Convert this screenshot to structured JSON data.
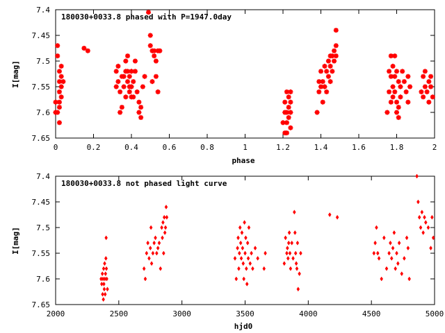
{
  "chart_data": [
    {
      "type": "scatter",
      "title": "180030+0033.8 phased with P=1947.0day",
      "xlabel": "phase",
      "ylabel": "I[mag]",
      "xlim": [
        0,
        2
      ],
      "ylim": [
        7.4,
        7.65
      ],
      "y_inverted": true,
      "xticks": [
        "0",
        "0.2",
        "0.4",
        "0.6",
        "0.8",
        "1",
        "1.2",
        "1.4",
        "1.6",
        "1.8",
        "2"
      ],
      "yticks": [
        "7.4",
        "7.45",
        "7.5",
        "7.55",
        "7.6",
        "7.65"
      ],
      "marker_color": "#ff0000",
      "marker": "star",
      "series": [
        {
          "x": [
            0.0,
            0.0,
            0.01,
            0.01,
            0.01,
            0.02,
            0.02,
            0.02,
            0.02,
            0.02,
            0.02,
            0.03,
            0.03,
            0.03,
            0.03,
            0.04,
            0.15,
            0.17,
            0.32,
            0.32,
            0.33,
            0.33,
            0.34,
            0.34,
            0.35,
            0.35,
            0.36,
            0.36,
            0.37,
            0.37,
            0.37,
            0.38,
            0.38,
            0.38,
            0.39,
            0.39,
            0.39,
            0.4,
            0.4,
            0.4,
            0.41,
            0.41,
            0.42,
            0.42,
            0.43,
            0.44,
            0.44,
            0.45,
            0.45,
            0.46,
            0.47,
            0.49,
            0.5,
            0.5,
            0.51,
            0.51,
            0.52,
            0.52,
            0.53,
            0.53,
            0.54,
            0.54,
            0.55,
            1.2,
            1.21,
            1.21,
            1.21,
            1.22,
            1.22,
            1.22,
            1.22,
            1.23,
            1.23,
            1.23,
            1.24,
            1.24,
            1.24,
            1.24,
            1.38,
            1.39,
            1.39,
            1.4,
            1.4,
            1.41,
            1.41,
            1.42,
            1.42,
            1.43,
            1.43,
            1.44,
            1.44,
            1.45,
            1.45,
            1.45,
            1.46,
            1.46,
            1.47,
            1.47,
            1.48,
            1.48,
            1.48,
            1.75,
            1.76,
            1.76,
            1.77,
            1.77,
            1.77,
            1.78,
            1.78,
            1.78,
            1.79,
            1.79,
            1.79,
            1.8,
            1.8,
            1.8,
            1.81,
            1.81,
            1.81,
            1.82,
            1.82,
            1.83,
            1.84,
            1.85,
            1.86,
            1.86,
            1.87,
            1.93,
            1.94,
            1.94,
            1.95,
            1.95,
            1.96,
            1.97,
            1.97,
            1.98,
            1.98,
            1.99
          ],
          "y": [
            7.58,
            7.6,
            7.47,
            7.49,
            7.6,
            7.52,
            7.54,
            7.56,
            7.58,
            7.59,
            7.62,
            7.55,
            7.53,
            7.57,
            7.51,
            7.54,
            7.475,
            7.48,
            7.52,
            7.55,
            7.54,
            7.51,
            7.6,
            7.56,
            7.59,
            7.53,
            7.55,
            7.53,
            7.5,
            7.52,
            7.57,
            7.54,
            7.49,
            7.52,
            7.55,
            7.56,
            7.53,
            7.52,
            7.57,
            7.55,
            7.54,
            7.57,
            7.52,
            7.5,
            7.56,
            7.58,
            7.6,
            7.59,
            7.61,
            7.55,
            7.53,
            7.405,
            7.45,
            7.47,
            7.48,
            7.54,
            7.48,
            7.49,
            7.5,
            7.53,
            7.48,
            7.56,
            7.48,
            7.62,
            7.6,
            7.58,
            7.64,
            7.56,
            7.6,
            7.62,
            7.64,
            7.57,
            7.59,
            7.61,
            7.63,
            7.6,
            7.56,
            7.58,
            7.6,
            7.54,
            7.56,
            7.55,
            7.52,
            7.54,
            7.58,
            7.51,
            7.55,
            7.52,
            7.56,
            7.5,
            7.53,
            7.49,
            7.51,
            7.54,
            7.49,
            7.52,
            7.48,
            7.5,
            7.44,
            7.47,
            7.49,
            7.6,
            7.52,
            7.56,
            7.49,
            7.53,
            7.58,
            7.51,
            7.55,
            7.57,
            7.49,
            7.53,
            7.56,
            7.58,
            7.52,
            7.6,
            7.54,
            7.59,
            7.61,
            7.55,
            7.57,
            7.52,
            7.54,
            7.56,
            7.58,
            7.53,
            7.55,
            7.56,
            7.53,
            7.57,
            7.52,
            7.55,
            7.56,
            7.54,
            7.58,
            7.55,
            7.53,
            7.57
          ]
        }
      ]
    },
    {
      "type": "scatter",
      "title": "180030+0033.8 not phased light curve",
      "xlabel": "hjd0",
      "ylabel": "I[mag]",
      "xlim": [
        2000,
        5000
      ],
      "ylim": [
        7.4,
        7.65
      ],
      "y_inverted": true,
      "xticks": [
        "2000",
        "2500",
        "3000",
        "3500",
        "4000",
        "4500",
        "5000"
      ],
      "yticks": [
        "7.4",
        "7.45",
        "7.5",
        "7.55",
        "7.6",
        "7.65"
      ],
      "marker_color": "#ff0000",
      "marker": "diamond",
      "series": [
        {
          "x": [
            2360,
            2365,
            2370,
            2372,
            2375,
            2378,
            2380,
            2382,
            2385,
            2388,
            2390,
            2392,
            2395,
            2398,
            2400,
            2402,
            2405,
            2410,
            2700,
            2710,
            2720,
            2730,
            2740,
            2750,
            2755,
            2760,
            2770,
            2780,
            2790,
            2800,
            2810,
            2820,
            2830,
            2840,
            2845,
            2850,
            2855,
            2860,
            2865,
            2870,
            2875,
            2880,
            3420,
            3430,
            3440,
            3445,
            3450,
            3455,
            3460,
            3465,
            3470,
            3475,
            3480,
            3485,
            3490,
            3495,
            3500,
            3505,
            3510,
            3515,
            3520,
            3525,
            3530,
            3540,
            3550,
            3560,
            3580,
            3600,
            3650,
            3660,
            3810,
            3820,
            3830,
            3835,
            3840,
            3845,
            3850,
            3855,
            3860,
            3870,
            3880,
            3890,
            3895,
            3900,
            3905,
            3910,
            3915,
            3920,
            3930,
            3940,
            4170,
            4230,
            4520,
            4530,
            4540,
            4550,
            4560,
            4580,
            4600,
            4620,
            4640,
            4650,
            4660,
            4670,
            4680,
            4690,
            4700,
            4710,
            4720,
            4740,
            4760,
            4780,
            4790,
            4800,
            4860,
            4870,
            4880,
            4890,
            4900,
            4910,
            4920,
            4930,
            4950,
            4970,
            4980,
            4990
          ],
          "y": [
            7.6,
            7.61,
            7.59,
            7.63,
            7.6,
            7.64,
            7.58,
            7.61,
            7.62,
            7.57,
            7.6,
            7.63,
            7.59,
            7.56,
            7.52,
            7.58,
            7.6,
            7.62,
            7.58,
            7.6,
            7.55,
            7.53,
            7.56,
            7.54,
            7.5,
            7.57,
            7.55,
            7.53,
            7.52,
            7.55,
            7.54,
            7.53,
            7.58,
            7.5,
            7.52,
            7.49,
            7.55,
            7.48,
            7.51,
            7.5,
            7.46,
            7.48,
            7.56,
            7.6,
            7.54,
            7.52,
            7.58,
            7.55,
            7.5,
            7.53,
            7.56,
            7.51,
            7.54,
            7.57,
            7.6,
            7.49,
            7.55,
            7.52,
            7.58,
            7.61,
            7.53,
            7.56,
            7.5,
            7.57,
            7.55,
            7.58,
            7.54,
            7.56,
            7.58,
            7.55,
            7.57,
            7.52,
            7.55,
            7.54,
            7.56,
            7.53,
            7.51,
            7.55,
            7.58,
            7.53,
            7.56,
            7.47,
            7.51,
            7.55,
            7.57,
            7.58,
            7.53,
            7.62,
            7.59,
            7.55,
            7.475,
            7.48,
            7.55,
            7.53,
            7.5,
            7.55,
            7.56,
            7.6,
            7.52,
            7.58,
            7.55,
            7.53,
            7.56,
            7.54,
            7.51,
            7.58,
            7.55,
            7.57,
            7.53,
            7.59,
            7.56,
            7.52,
            7.54,
            7.6,
            7.4,
            7.45,
            7.48,
            7.5,
            7.47,
            7.51,
            7.48,
            7.49,
            7.5,
            7.54,
            7.48,
            7.52
          ]
        }
      ]
    }
  ]
}
